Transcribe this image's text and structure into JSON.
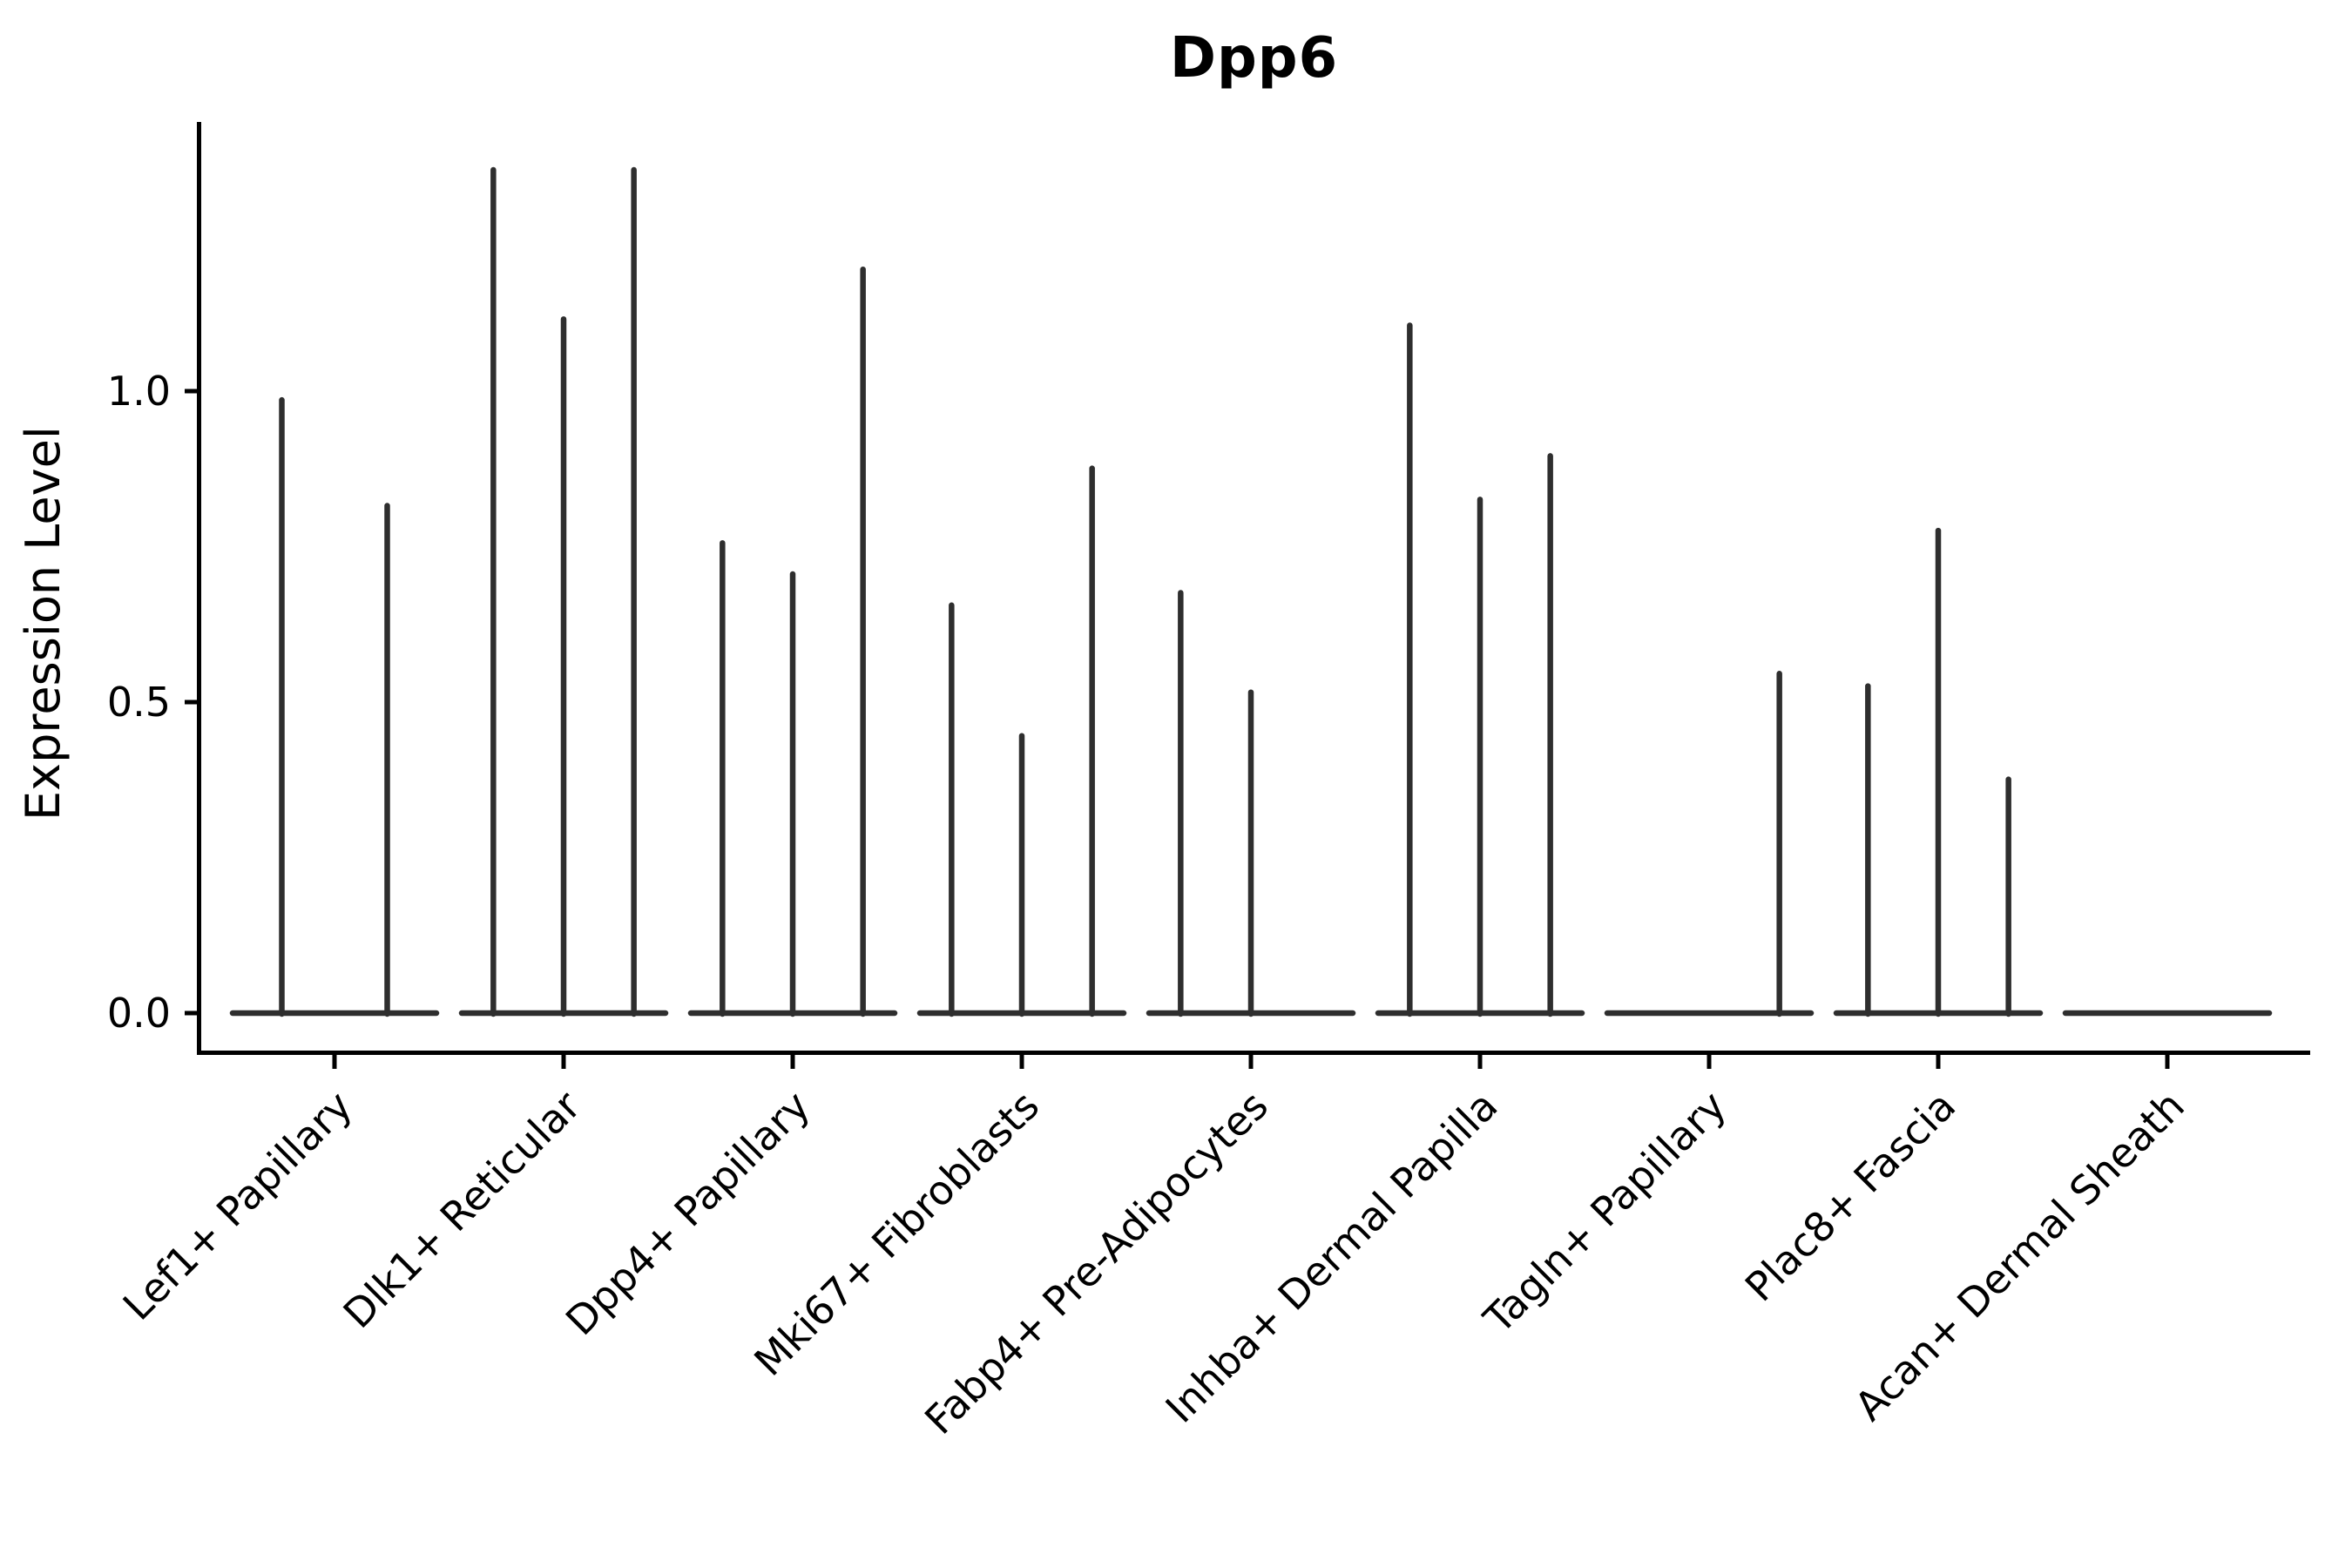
{
  "chart_data": {
    "type": "violin",
    "title": "Dpp6",
    "xlabel": "",
    "ylabel": "Expression Level",
    "y_ticks": [
      {
        "value": 0.0,
        "label": "0.0"
      },
      {
        "value": 0.5,
        "label": "0.5"
      },
      {
        "value": 1.0,
        "label": "1.0"
      }
    ],
    "ylim": [
      -0.06,
      1.43
    ],
    "grid": false,
    "legend": "none",
    "background_color": "#ffffff",
    "violin_line_color": "#2e2e2e",
    "axis_color": "#000000",
    "description": "Needle-thin violins: each category has equal-width sub-violins sharing a flat density line at y=0; violin_max lists the peak expression spike of each sub-violin (0 = flat, no spike).",
    "groups": [
      {
        "category": "Lef1+ Papillary",
        "violin_max": [
          0.99,
          0.82
        ]
      },
      {
        "category": "Dlk1+ Reticular",
        "violin_max": [
          1.36,
          1.12,
          1.36
        ]
      },
      {
        "category": "Dpp4+ Papillary",
        "violin_max": [
          0.76,
          0.71,
          1.2
        ]
      },
      {
        "category": "Mki67+ Fibroblasts",
        "violin_max": [
          0.66,
          0.45,
          0.88
        ]
      },
      {
        "category": "Fabp4+ Pre-Adipocytes",
        "violin_max": [
          0.68,
          0.52,
          0
        ]
      },
      {
        "category": "Inhba+ Dermal Papilla",
        "violin_max": [
          1.11,
          0.83,
          0.9
        ]
      },
      {
        "category": "Tagln+ Papillary",
        "violin_max": [
          0,
          0,
          0.55
        ]
      },
      {
        "category": "Plac8+ Fascia",
        "violin_max": [
          0.53,
          0.78,
          0.38
        ]
      },
      {
        "category": "Acan+ Dermal Sheath",
        "violin_max": [
          0,
          0,
          0
        ]
      }
    ]
  }
}
